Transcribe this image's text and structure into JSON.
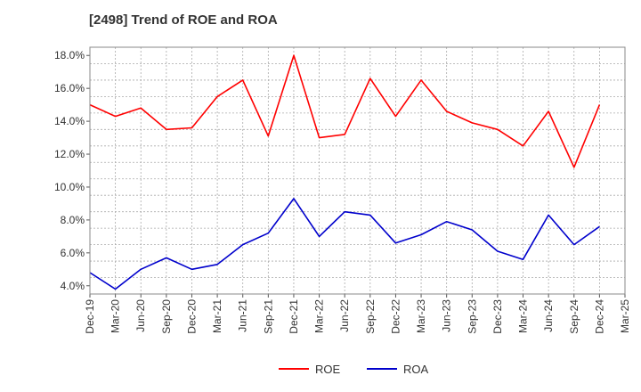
{
  "chart_data": {
    "type": "line",
    "title": "[2498]  Trend of ROE and ROA",
    "xlabel": "",
    "ylabel": "",
    "categories": [
      "Dec-19",
      "Mar-20",
      "Jun-20",
      "Sep-20",
      "Dec-20",
      "Mar-21",
      "Jun-21",
      "Sep-21",
      "Dec-21",
      "Mar-22",
      "Jun-22",
      "Sep-22",
      "Dec-22",
      "Mar-23",
      "Jun-23",
      "Sep-23",
      "Dec-23",
      "Mar-24",
      "Jun-24",
      "Sep-24",
      "Dec-24",
      "Mar-25"
    ],
    "ylim": [
      3.5,
      18.5
    ],
    "yticks": [
      4.0,
      6.0,
      8.0,
      10.0,
      12.0,
      14.0,
      16.0,
      18.0
    ],
    "ytick_labels": [
      "4.0%",
      "6.0%",
      "8.0%",
      "10.0%",
      "12.0%",
      "14.0%",
      "16.0%",
      "18.0%"
    ],
    "grid": true,
    "legend_position": "bottom",
    "series": [
      {
        "name": "ROE",
        "color": "#ff0000",
        "values": [
          15.0,
          14.3,
          14.8,
          13.5,
          13.6,
          15.5,
          16.5,
          13.1,
          18.0,
          13.0,
          13.2,
          16.6,
          14.3,
          16.5,
          14.6,
          13.9,
          13.5,
          12.5,
          14.6,
          11.2,
          15.0,
          null
        ]
      },
      {
        "name": "ROA",
        "color": "#0000cc",
        "values": [
          4.8,
          3.8,
          5.0,
          5.7,
          5.0,
          5.3,
          6.5,
          7.2,
          9.3,
          7.0,
          8.5,
          8.3,
          6.6,
          7.1,
          7.9,
          7.4,
          6.1,
          5.6,
          8.3,
          6.5,
          7.6,
          null
        ]
      }
    ]
  }
}
